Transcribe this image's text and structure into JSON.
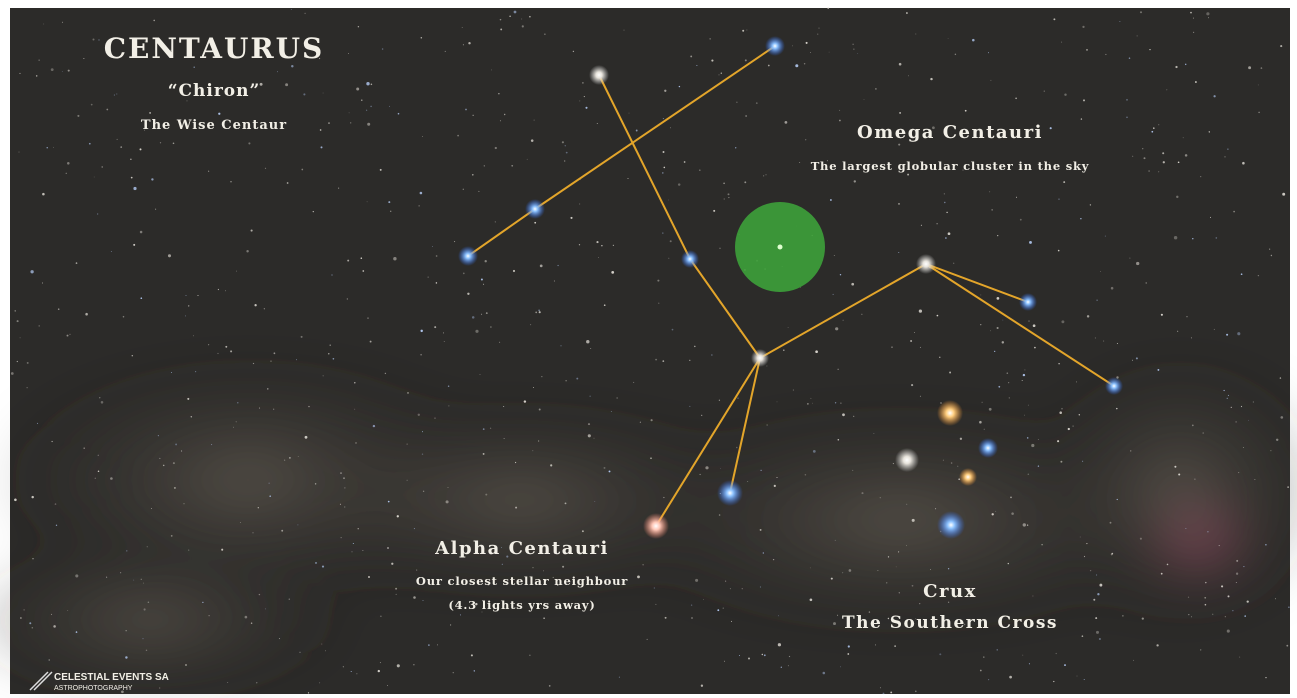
{
  "title": {
    "name": "CENTAURUS",
    "nickname": "“Chiron”",
    "subtitle": "The Wise Centaur"
  },
  "labels": [
    {
      "title": "Omega Centauri",
      "lines": [
        "The largest globular cluster in the sky"
      ]
    },
    {
      "title": "Alpha Centauri",
      "lines": [
        "Our closest stellar neighbour",
        "(4.3 lights yrs away)"
      ]
    },
    {
      "title": "Crux",
      "lines": [
        "The Southern Cross"
      ]
    }
  ],
  "watermark": {
    "name": "CELESTIAL EVENTS SA",
    "tagline": "ASTROPHOTOGRAPHY"
  }
}
